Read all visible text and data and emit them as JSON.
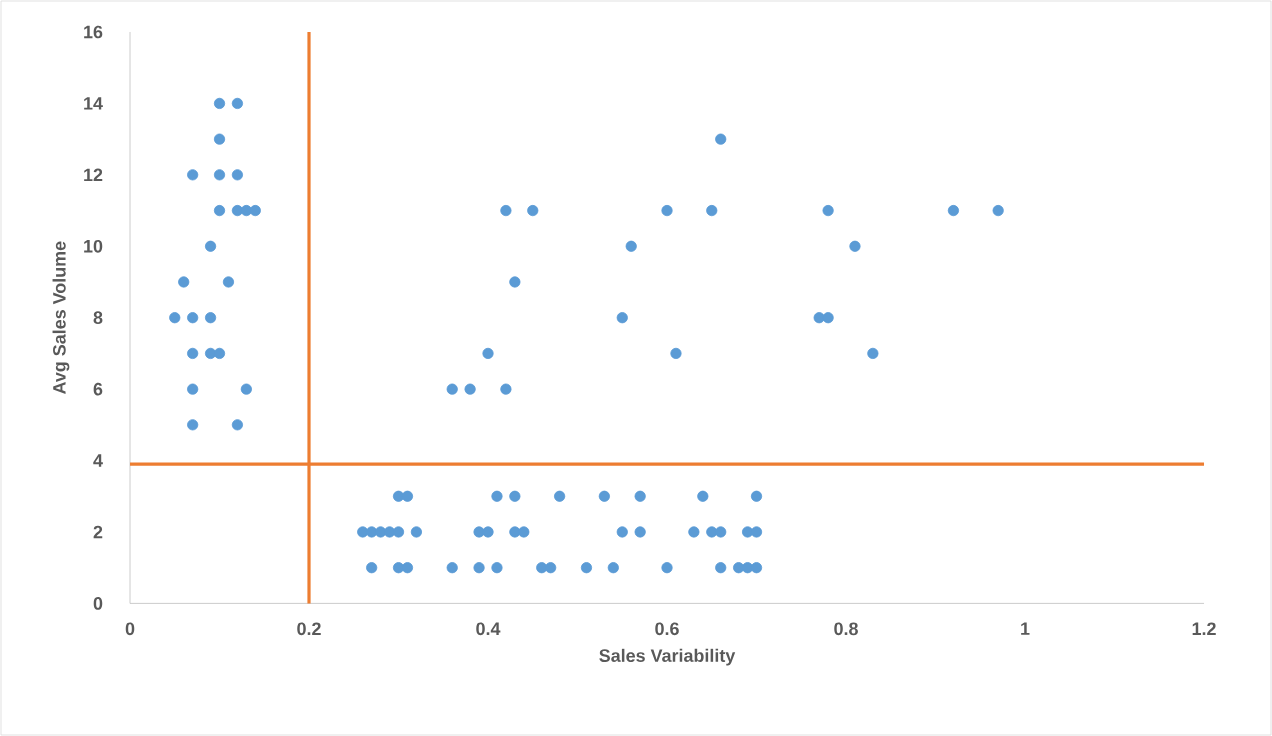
{
  "chart_data": {
    "type": "scatter",
    "xlabel": "Sales Variability",
    "ylabel": "Avg Sales Volume",
    "xlim": [
      0,
      1.2
    ],
    "xticks": [
      0,
      0.2,
      0.4,
      0.6,
      0.8,
      1,
      1.2
    ],
    "ylim": [
      0,
      16
    ],
    "yticks": [
      0,
      2,
      4,
      6,
      8,
      10,
      12,
      14,
      16
    ],
    "grid": false,
    "series": [
      {
        "color": "#5b9bd5",
        "x": [
          0.1,
          0.12,
          0.1,
          0.07,
          0.1,
          0.12,
          0.1,
          0.12,
          0.13,
          0.14,
          0.09,
          0.06,
          0.11,
          0.05,
          0.07,
          0.09,
          0.07,
          0.09,
          0.1,
          0.07,
          0.13,
          0.07,
          0.12,
          0.66,
          0.42,
          0.45,
          0.6,
          0.65,
          0.78,
          0.92,
          0.97,
          0.56,
          0.81,
          0.43,
          0.55,
          0.77,
          0.78,
          0.4,
          0.61,
          0.83,
          0.36,
          0.38,
          0.42,
          0.3,
          0.31,
          0.41,
          0.43,
          0.48,
          0.53,
          0.57,
          0.64,
          0.7,
          0.26,
          0.27,
          0.28,
          0.29,
          0.3,
          0.32,
          0.39,
          0.4,
          0.43,
          0.44,
          0.55,
          0.57,
          0.63,
          0.65,
          0.66,
          0.69,
          0.7,
          0.27,
          0.3,
          0.31,
          0.36,
          0.39,
          0.41,
          0.46,
          0.47,
          0.51,
          0.54,
          0.6,
          0.66,
          0.68,
          0.69,
          0.7
        ],
        "values": [
          14,
          14,
          13,
          12,
          12,
          12,
          11,
          11,
          11,
          11,
          10,
          9,
          9,
          8,
          8,
          8,
          7,
          7,
          7,
          6,
          6,
          5,
          5,
          13,
          11,
          11,
          11,
          11,
          11,
          11,
          11,
          10,
          10,
          9,
          8,
          8,
          8,
          7,
          7,
          7,
          6,
          6,
          6,
          3,
          3,
          3,
          3,
          3,
          3,
          3,
          3,
          3,
          2,
          2,
          2,
          2,
          2,
          2,
          2,
          2,
          2,
          2,
          2,
          2,
          2,
          2,
          2,
          2,
          2,
          1,
          1,
          1,
          1,
          1,
          1,
          1,
          1,
          1,
          1,
          1,
          1,
          1,
          1,
          1
        ]
      }
    ],
    "ref_lines": [
      {
        "axis": "x",
        "value": 0.2,
        "color": "#ed7d31"
      },
      {
        "axis": "y",
        "value": 3.9,
        "color": "#ed7d31"
      }
    ]
  }
}
